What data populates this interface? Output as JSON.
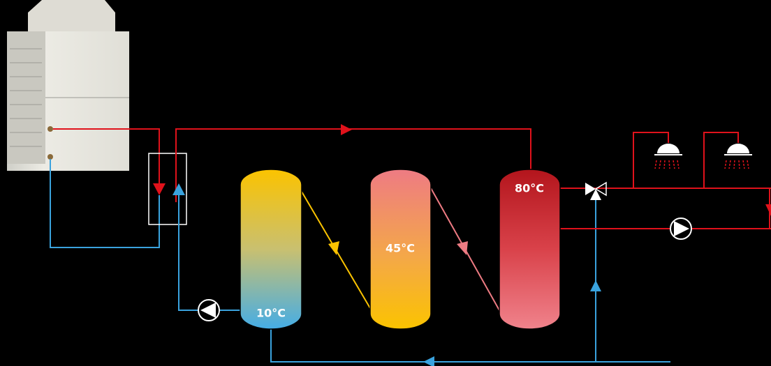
{
  "tanks": [
    {
      "label": "10°C"
    },
    {
      "label": "45°C"
    },
    {
      "label": "80°C"
    }
  ]
}
